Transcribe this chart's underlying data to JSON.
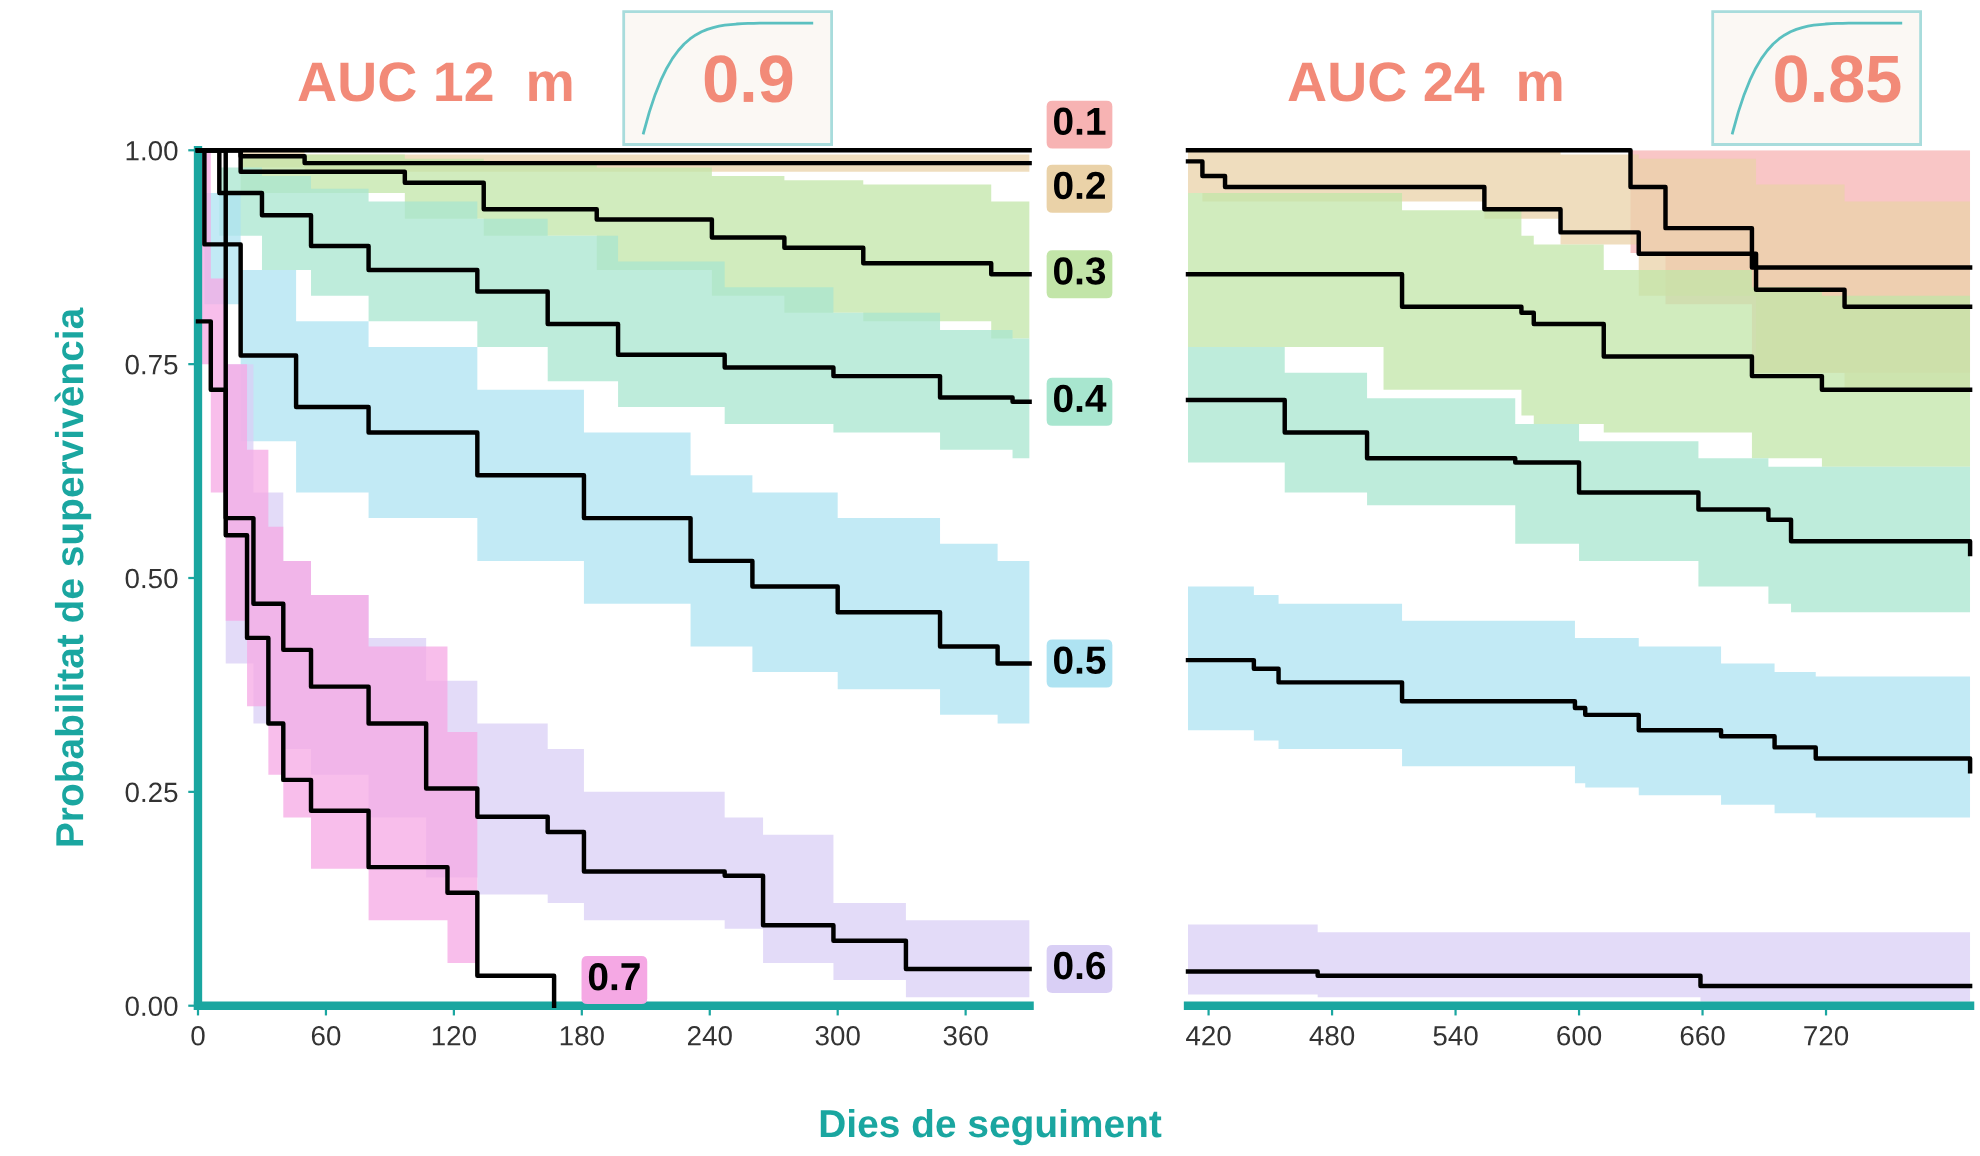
{
  "chart_data": [
    {
      "type": "step",
      "title": "AUC 12  m",
      "annotations": [
        "0.9"
      ],
      "xlabel": "Dies de seguiment",
      "ylabel": "Probabilitat de supervivència",
      "xlim": [
        0,
        390
      ],
      "ylim": [
        0,
        1
      ],
      "xticks": [
        0,
        60,
        120,
        180,
        240,
        300,
        360
      ],
      "yticks": [
        {
          "value": 0,
          "label": "0.00"
        },
        {
          "value": 0.25,
          "label": "0.25"
        },
        {
          "value": 0.5,
          "label": "0.50"
        },
        {
          "value": 0.75,
          "label": "0.75"
        },
        {
          "value": 1,
          "label": "1.00"
        }
      ],
      "grid": false,
      "legend": false,
      "series": [
        {
          "name": "0.1",
          "color": "#000000",
          "x": [
            0,
            390
          ],
          "values": [
            1,
            1
          ]
        },
        {
          "name": "0.2",
          "color": "#000000",
          "x": [
            0,
            20,
            50,
            390
          ],
          "values": [
            1,
            0.993,
            0.985,
            0.985
          ],
          "lower": [
            1,
            0.98,
            0.975,
            0.962
          ],
          "upper": [
            1,
            1,
            0.995,
            0.995
          ]
        },
        {
          "name": "0.3",
          "color": "#000000",
          "x": [
            0,
            20,
            97,
            134,
            187,
            241,
            275,
            312,
            372,
            390
          ],
          "values": [
            1,
            0.975,
            0.962,
            0.931,
            0.919,
            0.898,
            0.886,
            0.868,
            0.855,
            0.855
          ],
          "lower": [
            1,
            0.95,
            0.92,
            0.9,
            0.86,
            0.83,
            0.81,
            0.8,
            0.78,
            0.78
          ],
          "upper": [
            1,
            0.995,
            0.99,
            0.985,
            0.98,
            0.97,
            0.965,
            0.96,
            0.94,
            0.94
          ]
        },
        {
          "name": "0.4",
          "color": "#000000",
          "x": [
            0,
            10,
            30,
            53,
            80,
            131,
            164,
            197,
            247,
            298,
            348,
            382,
            390
          ],
          "values": [
            1,
            0.95,
            0.924,
            0.888,
            0.86,
            0.835,
            0.797,
            0.761,
            0.746,
            0.736,
            0.711,
            0.706,
            0.706
          ],
          "lower": [
            1,
            0.9,
            0.86,
            0.83,
            0.8,
            0.77,
            0.73,
            0.7,
            0.68,
            0.67,
            0.65,
            0.64,
            0.64
          ],
          "upper": [
            1,
            0.98,
            0.97,
            0.955,
            0.94,
            0.92,
            0.9,
            0.87,
            0.84,
            0.81,
            0.79,
            0.78,
            0.78
          ]
        },
        {
          "name": "0.5",
          "color": "#000000",
          "x": [
            0,
            3,
            20,
            46,
            80,
            131,
            181,
            231,
            260,
            300,
            348,
            375,
            390
          ],
          "values": [
            1,
            0.89,
            0.76,
            0.7,
            0.67,
            0.62,
            0.57,
            0.52,
            0.49,
            0.46,
            0.42,
            0.4,
            0.4
          ],
          "lower": [
            1,
            0.82,
            0.66,
            0.6,
            0.57,
            0.52,
            0.47,
            0.42,
            0.39,
            0.37,
            0.34,
            0.33,
            0.33
          ],
          "upper": [
            1,
            0.95,
            0.86,
            0.8,
            0.77,
            0.72,
            0.67,
            0.62,
            0.6,
            0.57,
            0.54,
            0.52,
            0.52
          ]
        },
        {
          "name": "0.6",
          "color": "#000000",
          "x": [
            0,
            13,
            26,
            40,
            53,
            80,
            107,
            131,
            164,
            181,
            247,
            265,
            298,
            332,
            382,
            390
          ],
          "values": [
            1,
            0.57,
            0.47,
            0.416,
            0.373,
            0.33,
            0.254,
            0.221,
            0.203,
            0.157,
            0.152,
            0.094,
            0.076,
            0.043,
            0.043,
            0.043
          ],
          "lower": [
            1,
            0.4,
            0.33,
            0.3,
            0.27,
            0.22,
            0.15,
            0.13,
            0.12,
            0.1,
            0.09,
            0.05,
            0.03,
            0.01,
            0.01,
            0.01
          ],
          "upper": [
            1,
            0.75,
            0.6,
            0.52,
            0.48,
            0.43,
            0.38,
            0.33,
            0.3,
            0.25,
            0.22,
            0.2,
            0.12,
            0.1,
            0.1,
            0.1
          ]
        },
        {
          "name": "0.7",
          "color": "#000000",
          "x": [
            0,
            6,
            13,
            23,
            33,
            40,
            53,
            80,
            117,
            131,
            167
          ],
          "values": [
            0.8,
            0.72,
            0.55,
            0.43,
            0.33,
            0.264,
            0.228,
            0.162,
            0.132,
            0.035,
            0
          ],
          "lower": [
            0.75,
            0.6,
            0.45,
            0.35,
            0.27,
            0.22,
            0.16,
            0.1,
            0.05,
            0,
            null
          ],
          "upper": [
            1,
            0.85,
            0.75,
            0.65,
            0.56,
            0.52,
            0.48,
            0.42,
            0.32,
            0.3,
            null
          ]
        }
      ]
    },
    {
      "type": "step",
      "title": "AUC 24  m",
      "annotations": [
        "0.85"
      ],
      "xlim": [
        410,
        790
      ],
      "ylim": [
        0,
        1
      ],
      "tick_labels": "x",
      "xticks": [
        420,
        480,
        540,
        600,
        660,
        720
      ],
      "grid": false,
      "legend": false,
      "series": [
        {
          "color": "#000000",
          "x": [
            410,
            625,
            642,
            684,
            790
          ],
          "values": [
            1,
            0.957,
            0.909,
            0.863,
            0.863
          ],
          "lower": [
            1,
            0.88,
            0.82,
            0.74,
            0.72
          ],
          "upper": [
            1,
            1,
            1,
            1,
            1
          ]
        },
        {
          "color": "#000000",
          "x": [
            410,
            417,
            428,
            554,
            591,
            629,
            686,
            729,
            790
          ],
          "values": [
            0.987,
            0.97,
            0.957,
            0.931,
            0.904,
            0.879,
            0.837,
            0.817,
            0.817
          ],
          "lower": [
            0.95,
            0.94,
            0.94,
            0.92,
            0.89,
            0.83,
            0.74,
            0.72,
            0.7
          ],
          "upper": [
            1,
            1,
            1,
            1,
            0.995,
            0.99,
            0.96,
            0.94,
            0.93
          ]
        },
        {
          "color": "#000000",
          "x": [
            410,
            505,
            514,
            572,
            578,
            612,
            684,
            718,
            790
          ],
          "values": [
            0.855,
            0.855,
            0.817,
            0.81,
            0.797,
            0.759,
            0.736,
            0.72,
            0.72
          ],
          "lower": [
            0.77,
            0.72,
            0.72,
            0.69,
            0.68,
            0.67,
            0.64,
            0.63,
            0.62
          ],
          "upper": [
            0.95,
            0.95,
            0.93,
            0.9,
            0.89,
            0.86,
            0.84,
            0.83,
            0.82
          ]
        },
        {
          "color": "#000000",
          "x": [
            410,
            457,
            497,
            569,
            600,
            658,
            692,
            703,
            790
          ],
          "values": [
            0.708,
            0.67,
            0.64,
            0.635,
            0.6,
            0.58,
            0.568,
            0.543,
            0.528
          ],
          "lower": [
            0.635,
            0.6,
            0.585,
            0.54,
            0.52,
            0.49,
            0.47,
            0.46,
            0.45
          ],
          "upper": [
            0.77,
            0.74,
            0.71,
            0.68,
            0.66,
            0.64,
            0.63,
            0.63,
            0.62
          ]
        },
        {
          "color": "#000000",
          "x": [
            410,
            442,
            454,
            514,
            598,
            603,
            629,
            669,
            695,
            715,
            790
          ],
          "values": [
            0.404,
            0.394,
            0.378,
            0.356,
            0.348,
            0.34,
            0.322,
            0.315,
            0.302,
            0.289,
            0.274
          ],
          "lower": [
            0.322,
            0.31,
            0.3,
            0.28,
            0.26,
            0.255,
            0.246,
            0.235,
            0.225,
            0.22,
            0.208
          ],
          "upper": [
            0.49,
            0.48,
            0.47,
            0.45,
            0.43,
            0.43,
            0.42,
            0.4,
            0.39,
            0.385,
            0.373
          ]
        },
        {
          "color": "#000000",
          "x": [
            410,
            473,
            659,
            790
          ],
          "values": [
            0.04,
            0.035,
            0.023,
            0.023
          ],
          "lower": [
            0.013,
            0.01,
            0.005,
            0.005
          ],
          "upper": [
            0.095,
            0.086,
            0.086,
            0.086
          ]
        }
      ]
    }
  ]
}
